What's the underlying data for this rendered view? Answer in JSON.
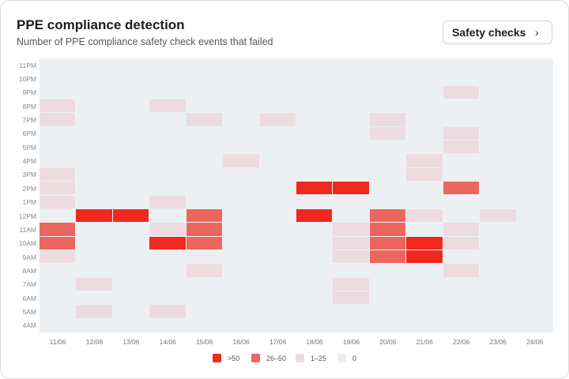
{
  "header": {
    "title": "PPE compliance detection",
    "subtitle": "Number of PPE compliance safety check events that failed"
  },
  "button": {
    "label": "Safety checks",
    "icon": "chevron-right-icon"
  },
  "colors": {
    "gt50": "#f0281e",
    "26to50": "#ec6660",
    "1to25": "#ecdcdf",
    "zero": "#edf0f3"
  },
  "legend": [
    {
      "key": "gt50",
      "label": ">50"
    },
    {
      "key": "26to50",
      "label": "26–50"
    },
    {
      "key": "1to25",
      "label": "1–25"
    },
    {
      "key": "zero",
      "label": "0"
    }
  ],
  "chart_data": {
    "type": "heatmap",
    "x": [
      "11/06",
      "12/06",
      "13/06",
      "14/06",
      "15/06",
      "16/06",
      "17/06",
      "18/06",
      "19/06",
      "20/06",
      "21/06",
      "22/06",
      "23/06",
      "24/06"
    ],
    "y": [
      "11PM",
      "10PM",
      "9PM",
      "8PM",
      "7PM",
      "6PM",
      "5PM",
      "4PM",
      "3PM",
      "2PM",
      "1PM",
      "12PM",
      "11AM",
      "10AM",
      "9AM",
      "8AM",
      "7AM",
      "6AM",
      "5AM",
      "4AM"
    ],
    "levels": [
      "0",
      "1–25",
      "26–50",
      ">50"
    ],
    "matrix": [
      [
        0,
        0,
        0,
        0,
        0,
        0,
        0,
        0,
        0,
        0,
        0,
        0,
        0,
        0
      ],
      [
        0,
        0,
        0,
        0,
        0,
        0,
        0,
        0,
        0,
        0,
        0,
        0,
        0,
        0
      ],
      [
        0,
        0,
        0,
        0,
        0,
        0,
        0,
        0,
        0,
        0,
        0,
        1,
        0,
        0
      ],
      [
        1,
        0,
        0,
        1,
        0,
        0,
        0,
        0,
        0,
        0,
        0,
        0,
        0,
        0
      ],
      [
        1,
        0,
        0,
        0,
        1,
        0,
        1,
        0,
        0,
        1,
        0,
        0,
        0,
        0
      ],
      [
        0,
        0,
        0,
        0,
        0,
        0,
        0,
        0,
        0,
        1,
        0,
        1,
        0,
        0
      ],
      [
        0,
        0,
        0,
        0,
        0,
        0,
        0,
        0,
        0,
        0,
        0,
        1,
        0,
        0
      ],
      [
        0,
        0,
        0,
        0,
        0,
        1,
        0,
        0,
        0,
        0,
        1,
        0,
        0,
        0
      ],
      [
        1,
        0,
        0,
        0,
        0,
        0,
        0,
        0,
        0,
        0,
        1,
        0,
        0,
        0
      ],
      [
        1,
        0,
        0,
        0,
        0,
        0,
        0,
        3,
        3,
        0,
        0,
        2,
        0,
        0
      ],
      [
        1,
        0,
        0,
        1,
        0,
        0,
        0,
        0,
        0,
        0,
        0,
        0,
        0,
        0
      ],
      [
        0,
        3,
        3,
        0,
        2,
        0,
        0,
        3,
        0,
        2,
        1,
        0,
        1,
        0
      ],
      [
        2,
        0,
        0,
        1,
        2,
        0,
        0,
        0,
        1,
        2,
        0,
        1,
        0,
        0
      ],
      [
        2,
        0,
        0,
        3,
        2,
        0,
        0,
        0,
        1,
        2,
        3,
        1,
        0,
        0
      ],
      [
        1,
        0,
        0,
        0,
        0,
        0,
        0,
        0,
        1,
        2,
        3,
        0,
        0,
        0
      ],
      [
        0,
        0,
        0,
        0,
        1,
        0,
        0,
        0,
        0,
        0,
        0,
        1,
        0,
        0
      ],
      [
        0,
        1,
        0,
        0,
        0,
        0,
        0,
        0,
        1,
        0,
        0,
        0,
        0,
        0
      ],
      [
        0,
        0,
        0,
        0,
        0,
        0,
        0,
        0,
        1,
        0,
        0,
        0,
        0,
        0
      ],
      [
        0,
        1,
        0,
        1,
        0,
        0,
        0,
        0,
        0,
        0,
        0,
        0,
        0,
        0
      ],
      [
        0,
        0,
        0,
        0,
        0,
        0,
        0,
        0,
        0,
        0,
        0,
        0,
        0,
        0
      ]
    ]
  }
}
